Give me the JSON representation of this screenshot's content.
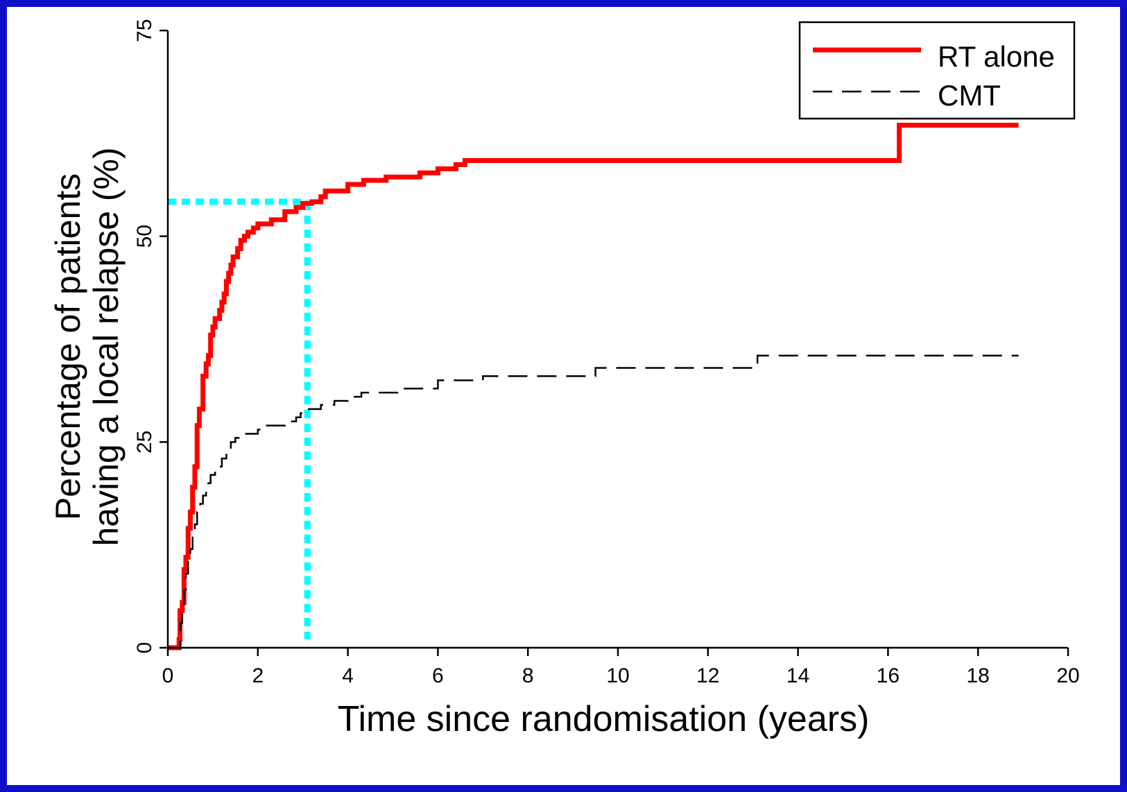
{
  "chart_data": {
    "type": "line",
    "title": "",
    "xlabel": "Time since randomisation (years)",
    "ylabel_lines": [
      "Percentage of patients",
      "having a local relapse (%)"
    ],
    "xlim": [
      0,
      20
    ],
    "ylim": [
      0,
      75
    ],
    "x_ticks": [
      0,
      2,
      4,
      6,
      8,
      10,
      12,
      14,
      16,
      18,
      20
    ],
    "y_ticks": [
      0,
      25,
      50,
      75
    ],
    "grid": false,
    "legend_position": "top-right",
    "series": [
      {
        "name": "RT alone",
        "color": "#ff0000",
        "style": "solid-thick",
        "step": true,
        "points": [
          [
            0,
            0
          ],
          [
            0.25,
            0
          ],
          [
            0.25,
            1
          ],
          [
            0.27,
            4.5
          ],
          [
            0.32,
            5.5
          ],
          [
            0.36,
            9.5
          ],
          [
            0.4,
            11
          ],
          [
            0.45,
            14.5
          ],
          [
            0.5,
            16.5
          ],
          [
            0.55,
            19.5
          ],
          [
            0.6,
            22
          ],
          [
            0.65,
            27
          ],
          [
            0.7,
            29
          ],
          [
            0.78,
            33
          ],
          [
            0.85,
            34.5
          ],
          [
            0.9,
            35.5
          ],
          [
            0.95,
            38
          ],
          [
            1.0,
            39
          ],
          [
            1.05,
            40
          ],
          [
            1.15,
            41
          ],
          [
            1.2,
            42
          ],
          [
            1.25,
            43
          ],
          [
            1.3,
            44.5
          ],
          [
            1.35,
            45.5
          ],
          [
            1.4,
            46.5
          ],
          [
            1.45,
            47.5
          ],
          [
            1.55,
            48.5
          ],
          [
            1.62,
            49.5
          ],
          [
            1.7,
            50
          ],
          [
            1.78,
            50.5
          ],
          [
            1.9,
            51
          ],
          [
            2.0,
            51.5
          ],
          [
            2.3,
            52
          ],
          [
            2.6,
            53
          ],
          [
            2.85,
            53.5
          ],
          [
            3.0,
            54
          ],
          [
            3.2,
            54.2
          ],
          [
            3.4,
            54.8
          ],
          [
            3.5,
            55.5
          ],
          [
            4.0,
            56.3
          ],
          [
            4.35,
            56.8
          ],
          [
            4.85,
            57.2
          ],
          [
            5.6,
            57.7
          ],
          [
            6.0,
            58.2
          ],
          [
            6.4,
            58.7
          ],
          [
            6.6,
            59.2
          ],
          [
            16.25,
            59.2
          ],
          [
            16.25,
            63.5
          ],
          [
            18.9,
            63.5
          ]
        ]
      },
      {
        "name": "CMT",
        "color": "#000000",
        "style": "dashed-thin",
        "step": true,
        "points": [
          [
            0,
            0
          ],
          [
            0.28,
            0
          ],
          [
            0.28,
            3
          ],
          [
            0.32,
            5
          ],
          [
            0.36,
            7
          ],
          [
            0.4,
            9
          ],
          [
            0.45,
            11
          ],
          [
            0.5,
            12
          ],
          [
            0.55,
            14
          ],
          [
            0.6,
            15
          ],
          [
            0.65,
            16.5
          ],
          [
            0.72,
            17.5
          ],
          [
            0.78,
            18.5
          ],
          [
            0.85,
            19
          ],
          [
            0.9,
            20
          ],
          [
            0.95,
            21
          ],
          [
            1.05,
            21.5
          ],
          [
            1.12,
            22
          ],
          [
            1.2,
            23
          ],
          [
            1.3,
            24
          ],
          [
            1.4,
            25
          ],
          [
            1.5,
            25.5
          ],
          [
            1.7,
            26
          ],
          [
            2.0,
            26.5
          ],
          [
            2.2,
            27
          ],
          [
            2.6,
            27.5
          ],
          [
            2.85,
            28
          ],
          [
            2.95,
            28.5
          ],
          [
            3.1,
            29
          ],
          [
            3.4,
            29.5
          ],
          [
            3.7,
            30
          ],
          [
            4.0,
            30.5
          ],
          [
            4.3,
            31
          ],
          [
            5.2,
            31.5
          ],
          [
            6.0,
            32.5
          ],
          [
            7.0,
            33
          ],
          [
            8.5,
            33
          ],
          [
            9.5,
            34
          ],
          [
            13.1,
            34
          ],
          [
            13.1,
            35.5
          ],
          [
            18.9,
            35.5
          ]
        ]
      }
    ],
    "annotation_lines": {
      "color": "#00ffff",
      "x": 3.1,
      "y": 54.2
    }
  }
}
